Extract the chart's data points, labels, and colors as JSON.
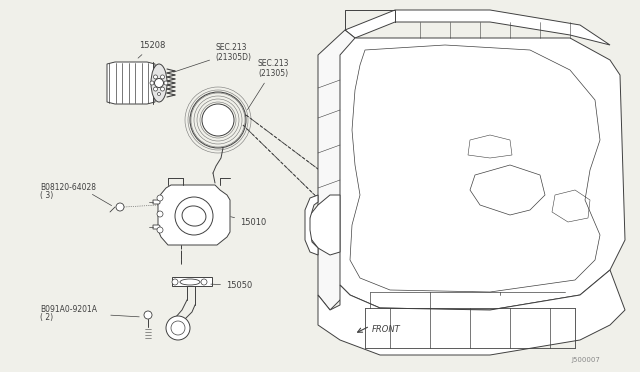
{
  "bg_color": "#f0f0ea",
  "line_color": "#404040",
  "lw": 0.7,
  "fig_w": 6.4,
  "fig_h": 3.72,
  "dpi": 100,
  "labels": {
    "part_15208": "15208",
    "sec213d": "SEC.213\n(21305D)",
    "sec213": "SEC.213\n(21305)",
    "bolt1_num": "B08120-64028",
    "bolt1_qty": "( 3)",
    "part_15010": "15010",
    "part_15050": "15050",
    "bolt2_num": "B091A0-9201A",
    "bolt2_qty": "( 2)",
    "front": "FRONT",
    "diagram_id": "J500007"
  },
  "font_size_label": 6.0,
  "font_size_small": 5.5,
  "font_size_id": 5.0
}
